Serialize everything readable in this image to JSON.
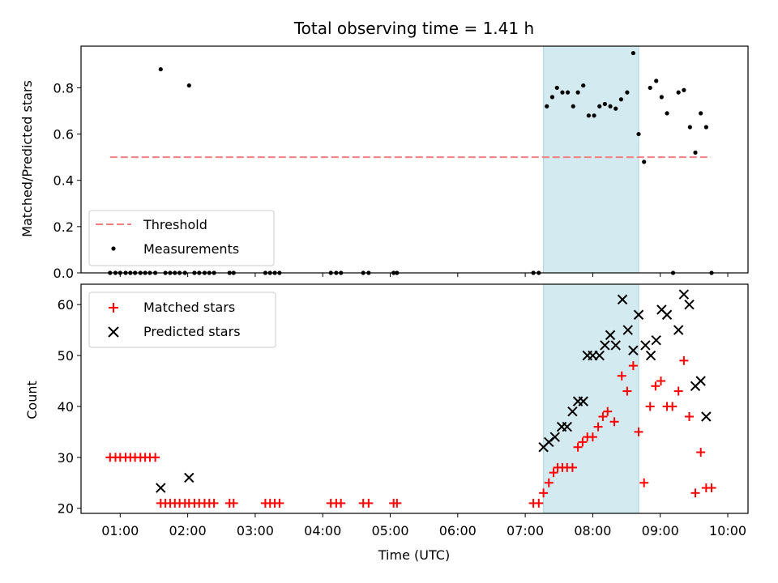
{
  "chart_data": [
    {
      "type": "scatter",
      "title": "Total observing time = 1.41 h",
      "xlabel": "",
      "ylabel": "Matched/Predicted stars",
      "ylim": [
        0,
        0.98
      ],
      "yticks": [
        "0.0",
        "0.2",
        "0.4",
        "0.6",
        "0.8"
      ],
      "xlim": [
        0.42,
        10.3
      ],
      "shaded_region": [
        7.27,
        8.68
      ],
      "shaded_color": "#d3eaf0",
      "threshold": {
        "name": "Threshold",
        "value": 0.5,
        "x": [
          0.85,
          9.75
        ],
        "color": "#f08080"
      },
      "series": [
        {
          "name": "Measurements",
          "color": "#000000",
          "points": [
            [
              0.85,
              0
            ],
            [
              0.93,
              0
            ],
            [
              1.0,
              0
            ],
            [
              1.08,
              0
            ],
            [
              1.15,
              0
            ],
            [
              1.22,
              0
            ],
            [
              1.3,
              0
            ],
            [
              1.37,
              0
            ],
            [
              1.44,
              0
            ],
            [
              1.52,
              0
            ],
            [
              1.6,
              0.88
            ],
            [
              1.67,
              0
            ],
            [
              1.74,
              0
            ],
            [
              1.81,
              0
            ],
            [
              1.88,
              0
            ],
            [
              1.96,
              0
            ],
            [
              2.02,
              0.81
            ],
            [
              2.1,
              0
            ],
            [
              2.17,
              0
            ],
            [
              2.25,
              0
            ],
            [
              2.32,
              0
            ],
            [
              2.39,
              0
            ],
            [
              2.62,
              0
            ],
            [
              2.68,
              0
            ],
            [
              3.15,
              0
            ],
            [
              3.22,
              0
            ],
            [
              3.29,
              0
            ],
            [
              3.36,
              0
            ],
            [
              4.12,
              0
            ],
            [
              4.2,
              0
            ],
            [
              4.27,
              0
            ],
            [
              4.6,
              0
            ],
            [
              4.68,
              0
            ],
            [
              5.05,
              0
            ],
            [
              5.1,
              0
            ],
            [
              7.12,
              0
            ],
            [
              7.2,
              0
            ],
            [
              7.32,
              0.72
            ],
            [
              7.4,
              0.76
            ],
            [
              7.47,
              0.8
            ],
            [
              7.55,
              0.78
            ],
            [
              7.63,
              0.78
            ],
            [
              7.71,
              0.72
            ],
            [
              7.78,
              0.78
            ],
            [
              7.86,
              0.81
            ],
            [
              7.94,
              0.68
            ],
            [
              8.02,
              0.68
            ],
            [
              8.1,
              0.72
            ],
            [
              8.18,
              0.73
            ],
            [
              8.26,
              0.72
            ],
            [
              8.34,
              0.71
            ],
            [
              8.42,
              0.75
            ],
            [
              8.51,
              0.78
            ],
            [
              8.6,
              0.95
            ],
            [
              8.68,
              0.6
            ],
            [
              8.76,
              0.48
            ],
            [
              8.85,
              0.8
            ],
            [
              8.94,
              0.83
            ],
            [
              9.02,
              0.76
            ],
            [
              9.1,
              0.69
            ],
            [
              9.19,
              0
            ],
            [
              9.27,
              0.78
            ],
            [
              9.35,
              0.79
            ],
            [
              9.44,
              0.63
            ],
            [
              9.52,
              0.52
            ],
            [
              9.6,
              0.69
            ],
            [
              9.68,
              0.63
            ],
            [
              9.76,
              0
            ]
          ]
        }
      ],
      "legend": {
        "position": "lower left",
        "entries": [
          "Threshold",
          "Measurements"
        ]
      }
    },
    {
      "type": "scatter",
      "title": "",
      "xlabel": "Time (UTC)",
      "ylabel": "Count",
      "ylim": [
        19,
        64
      ],
      "yticks": [
        "20",
        "30",
        "40",
        "50",
        "60"
      ],
      "xlim": [
        0.42,
        10.3
      ],
      "xticks": [
        "01:00",
        "02:00",
        "03:00",
        "04:00",
        "05:00",
        "06:00",
        "07:00",
        "08:00",
        "09:00",
        "10:00"
      ],
      "shaded_region": [
        7.27,
        8.68
      ],
      "series": [
        {
          "name": "Matched stars",
          "marker": "+",
          "color": "#ff0000",
          "points": [
            [
              0.85,
              30
            ],
            [
              0.93,
              30
            ],
            [
              1.0,
              30
            ],
            [
              1.08,
              30
            ],
            [
              1.15,
              30
            ],
            [
              1.22,
              30
            ],
            [
              1.3,
              30
            ],
            [
              1.37,
              30
            ],
            [
              1.44,
              30
            ],
            [
              1.52,
              30
            ],
            [
              1.6,
              21
            ],
            [
              1.67,
              21
            ],
            [
              1.74,
              21
            ],
            [
              1.81,
              21
            ],
            [
              1.88,
              21
            ],
            [
              1.96,
              21
            ],
            [
              2.02,
              21
            ],
            [
              2.1,
              21
            ],
            [
              2.17,
              21
            ],
            [
              2.25,
              21
            ],
            [
              2.32,
              21
            ],
            [
              2.39,
              21
            ],
            [
              2.62,
              21
            ],
            [
              2.68,
              21
            ],
            [
              3.15,
              21
            ],
            [
              3.22,
              21
            ],
            [
              3.29,
              21
            ],
            [
              3.36,
              21
            ],
            [
              4.12,
              21
            ],
            [
              4.2,
              21
            ],
            [
              4.27,
              21
            ],
            [
              4.6,
              21
            ],
            [
              4.68,
              21
            ],
            [
              5.05,
              21
            ],
            [
              5.1,
              21
            ],
            [
              7.12,
              21
            ],
            [
              7.2,
              21
            ],
            [
              7.27,
              23
            ],
            [
              7.35,
              25
            ],
            [
              7.42,
              27
            ],
            [
              7.48,
              28
            ],
            [
              7.55,
              28
            ],
            [
              7.62,
              28
            ],
            [
              7.7,
              28
            ],
            [
              7.78,
              32
            ],
            [
              7.85,
              33
            ],
            [
              7.92,
              34
            ],
            [
              8.0,
              34
            ],
            [
              8.08,
              36
            ],
            [
              8.15,
              38
            ],
            [
              8.22,
              39
            ],
            [
              8.32,
              37
            ],
            [
              8.43,
              46
            ],
            [
              8.51,
              43
            ],
            [
              8.6,
              48
            ],
            [
              8.68,
              35
            ],
            [
              8.76,
              25
            ],
            [
              8.85,
              40
            ],
            [
              8.93,
              44
            ],
            [
              9.01,
              45
            ],
            [
              9.1,
              40
            ],
            [
              9.18,
              40
            ],
            [
              9.27,
              43
            ],
            [
              9.35,
              49
            ],
            [
              9.43,
              38
            ],
            [
              9.52,
              23
            ],
            [
              9.6,
              31
            ],
            [
              9.68,
              24
            ],
            [
              9.76,
              24
            ]
          ]
        },
        {
          "name": "Predicted stars",
          "marker": "x",
          "color": "#000000",
          "points": [
            [
              1.6,
              24
            ],
            [
              2.02,
              26
            ],
            [
              7.27,
              32
            ],
            [
              7.35,
              33
            ],
            [
              7.44,
              34
            ],
            [
              7.54,
              36
            ],
            [
              7.62,
              36
            ],
            [
              7.7,
              39
            ],
            [
              7.78,
              41
            ],
            [
              7.86,
              41
            ],
            [
              7.92,
              50
            ],
            [
              8.0,
              50
            ],
            [
              8.1,
              50
            ],
            [
              8.18,
              52
            ],
            [
              8.26,
              54
            ],
            [
              8.34,
              52
            ],
            [
              8.44,
              61
            ],
            [
              8.52,
              55
            ],
            [
              8.6,
              51
            ],
            [
              8.68,
              58
            ],
            [
              8.78,
              52
            ],
            [
              8.86,
              50
            ],
            [
              8.94,
              53
            ],
            [
              9.02,
              59
            ],
            [
              9.1,
              58
            ],
            [
              9.27,
              55
            ],
            [
              9.35,
              62
            ],
            [
              9.43,
              60
            ],
            [
              9.52,
              44
            ],
            [
              9.6,
              45
            ],
            [
              9.68,
              38
            ]
          ]
        }
      ],
      "legend": {
        "position": "upper left",
        "entries": [
          "Matched stars",
          "Predicted stars"
        ]
      }
    }
  ]
}
